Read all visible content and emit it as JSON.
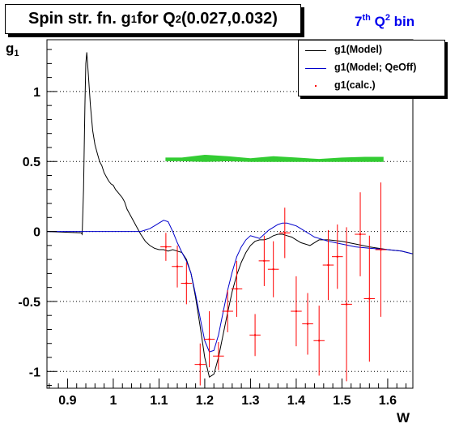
{
  "title": {
    "main": "Spin str. fn. g",
    "sub": "1",
    "mid": " for Q",
    "sup": "2",
    "range": "(0.027,0.032)"
  },
  "bin_label": {
    "pre": "7",
    "sup1": "th",
    "mid": " Q",
    "sup2": "2",
    "post": " bin"
  },
  "colors": {
    "model": "#000000",
    "qeoff": "#0000cc",
    "calc": "#ff0000",
    "band": "#33cc33"
  },
  "chart_data": {
    "type": "line",
    "xlabel": "W",
    "ylabel_main": "g",
    "ylabel_sub": "1",
    "xlim": [
      0.855,
      1.655
    ],
    "ylim": [
      -1.12,
      1.37
    ],
    "x_ticks": [
      0.9,
      1,
      1.1,
      1.2,
      1.3,
      1.4,
      1.5,
      1.6
    ],
    "x_tick_labels": [
      "0.9",
      "1",
      "1.1",
      "1.2",
      "1.3",
      "1.4",
      "1.5",
      "1.6"
    ],
    "y_ticks": [
      -1,
      -0.5,
      0,
      0.5,
      1
    ],
    "y_tick_labels": [
      "-1",
      "-0.5",
      "0",
      "0.5",
      "1"
    ],
    "grid": "horizontal dotted at major y ticks",
    "legend": {
      "position": "top-right",
      "entries": [
        {
          "label": "g1(Model)",
          "symbol": "line",
          "color": "#000000"
        },
        {
          "label": "g1(Model; QeOff)",
          "symbol": "line",
          "color": "#0000cc"
        },
        {
          "label": "g1(calc.)",
          "symbol": "point",
          "color": "#ff0000"
        }
      ]
    },
    "series": [
      {
        "name": "g1(Model)",
        "color": "#000000",
        "x": [
          0.855,
          0.93,
          0.932,
          0.935,
          0.938,
          0.94,
          0.942,
          0.945,
          0.95,
          0.955,
          0.96,
          0.965,
          0.97,
          0.975,
          0.98,
          0.985,
          0.99,
          0.995,
          1.0,
          1.005,
          1.01,
          1.015,
          1.02,
          1.025,
          1.03,
          1.04,
          1.05,
          1.06,
          1.07,
          1.08,
          1.09,
          1.1,
          1.11,
          1.12,
          1.13,
          1.14,
          1.15,
          1.16,
          1.17,
          1.18,
          1.19,
          1.2,
          1.21,
          1.22,
          1.23,
          1.24,
          1.25,
          1.26,
          1.27,
          1.28,
          1.29,
          1.3,
          1.31,
          1.32,
          1.33,
          1.34,
          1.35,
          1.36,
          1.37,
          1.38,
          1.39,
          1.4,
          1.41,
          1.42,
          1.43,
          1.44,
          1.45,
          1.47,
          1.5,
          1.53,
          1.56,
          1.6,
          1.63,
          1.655
        ],
        "y": [
          0.0,
          -0.01,
          -0.02,
          0.3,
          0.9,
          1.2,
          1.28,
          1.15,
          0.9,
          0.72,
          0.62,
          0.56,
          0.5,
          0.47,
          0.42,
          0.39,
          0.36,
          0.34,
          0.33,
          0.3,
          0.28,
          0.26,
          0.24,
          0.21,
          0.16,
          0.1,
          0.04,
          -0.02,
          -0.07,
          -0.1,
          -0.12,
          -0.13,
          -0.13,
          -0.14,
          -0.13,
          -0.14,
          -0.15,
          -0.2,
          -0.3,
          -0.47,
          -0.68,
          -0.9,
          -1.04,
          -1.02,
          -0.9,
          -0.74,
          -0.58,
          -0.43,
          -0.31,
          -0.22,
          -0.15,
          -0.1,
          -0.07,
          -0.06,
          -0.06,
          -0.05,
          -0.03,
          -0.02,
          -0.02,
          -0.03,
          -0.04,
          -0.06,
          -0.08,
          -0.09,
          -0.1,
          -0.08,
          -0.06,
          -0.06,
          -0.07,
          -0.09,
          -0.11,
          -0.13,
          -0.14,
          -0.16
        ]
      },
      {
        "name": "g1(Model; QeOff)",
        "color": "#0000cc",
        "x": [
          0.855,
          1.05,
          1.06,
          1.07,
          1.08,
          1.09,
          1.1,
          1.11,
          1.12,
          1.13,
          1.14,
          1.15,
          1.16,
          1.17,
          1.18,
          1.19,
          1.2,
          1.21,
          1.22,
          1.23,
          1.24,
          1.25,
          1.26,
          1.27,
          1.28,
          1.29,
          1.3,
          1.31,
          1.32,
          1.33,
          1.34,
          1.35,
          1.36,
          1.37,
          1.38,
          1.39,
          1.4,
          1.41,
          1.42,
          1.43,
          1.44,
          1.45,
          1.47,
          1.5,
          1.53,
          1.56,
          1.6,
          1.63,
          1.655
        ],
        "y": [
          0.0,
          0.0,
          0.0,
          0.01,
          0.02,
          0.04,
          0.06,
          0.08,
          0.07,
          0.0,
          -0.08,
          -0.15,
          -0.21,
          -0.3,
          -0.45,
          -0.62,
          -0.78,
          -0.86,
          -0.85,
          -0.74,
          -0.58,
          -0.42,
          -0.29,
          -0.18,
          -0.11,
          -0.06,
          -0.03,
          -0.04,
          -0.05,
          -0.02,
          0.01,
          0.03,
          0.05,
          0.06,
          0.06,
          0.05,
          0.04,
          0.02,
          0.0,
          -0.02,
          -0.04,
          -0.05,
          -0.07,
          -0.09,
          -0.11,
          -0.12,
          -0.13,
          -0.14,
          -0.16
        ]
      }
    ],
    "points": {
      "name": "g1(calc.)",
      "color": "#ff0000",
      "x": [
        1.115,
        1.14,
        1.16,
        1.19,
        1.21,
        1.23,
        1.25,
        1.27,
        1.31,
        1.33,
        1.35,
        1.375,
        1.4,
        1.425,
        1.45,
        1.47,
        1.49,
        1.51,
        1.54,
        1.56,
        1.585
      ],
      "y": [
        -0.11,
        -0.25,
        -0.37,
        -0.95,
        -0.77,
        -0.89,
        -0.57,
        -0.41,
        -0.74,
        -0.21,
        -0.27,
        -0.01,
        -0.57,
        -0.66,
        -0.78,
        -0.24,
        -0.18,
        -0.52,
        -0.02,
        -0.48,
        -0.13
      ],
      "yerr": [
        0.1,
        0.15,
        0.15,
        0.15,
        0.2,
        0.1,
        0.15,
        0.2,
        0.15,
        0.18,
        0.2,
        0.18,
        0.25,
        0.22,
        0.25,
        0.25,
        0.23,
        0.55,
        0.3,
        0.45,
        0.48
      ],
      "xerr": 0.012
    },
    "band": {
      "color": "#33cc33",
      "x": [
        1.115,
        1.15,
        1.2,
        1.25,
        1.3,
        1.35,
        1.4,
        1.45,
        1.5,
        1.55,
        1.59
      ],
      "lower": [
        0.505,
        0.505,
        0.5,
        0.505,
        0.5,
        0.5,
        0.5,
        0.5,
        0.5,
        0.5,
        0.5
      ],
      "upper": [
        0.525,
        0.525,
        0.545,
        0.535,
        0.52,
        0.535,
        0.525,
        0.515,
        0.525,
        0.53,
        0.53
      ]
    }
  }
}
